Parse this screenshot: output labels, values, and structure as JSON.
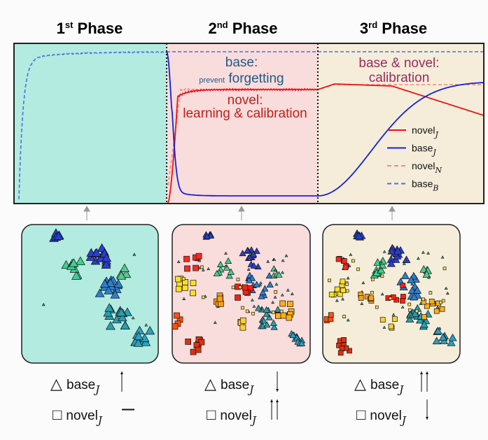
{
  "phases": [
    {
      "title": "1",
      "sup": "st",
      "rest": " Phase",
      "bg": "#b3ebe0"
    },
    {
      "title": "2",
      "sup": "nd",
      "rest": " Phase",
      "bg": "#f9dcdc"
    },
    {
      "title": "3",
      "sup": "rd",
      "rest": " Phase",
      "bg": "#f5edda"
    }
  ],
  "annotations": {
    "phase2_base_title": "base:",
    "phase2_base_small": "prevent",
    "phase2_base_body": "forgetting",
    "phase2_novel_title": "novel:",
    "phase2_novel_body": "learning & calibration",
    "phase3_title": "base & novel:",
    "phase3_body": "calibration"
  },
  "annotation_colors": {
    "base": "#1f5a85",
    "novel": "#c0201a",
    "both": "#9c2a5e"
  },
  "legend": [
    {
      "label": "novel",
      "sub": "J",
      "color": "#ee1111",
      "style": "solid"
    },
    {
      "label": "base",
      "sub": "J",
      "color": "#1122dd",
      "style": "solid"
    },
    {
      "label": "novel",
      "sub": "N",
      "color": "#f28a80",
      "style": "dashed"
    },
    {
      "label": "base",
      "sub": "B",
      "color": "#4a6fe0",
      "style": "dashed"
    }
  ],
  "summaries": [
    {
      "base": "base",
      "base_sub": "J",
      "base_trend": "↑",
      "novel": "novel",
      "novel_sub": "J",
      "novel_trend": "—"
    },
    {
      "base": "base",
      "base_sub": "J",
      "base_trend": "↓",
      "novel": "novel",
      "novel_sub": "J",
      "novel_trend": "↑↑"
    },
    {
      "base": "base",
      "base_sub": "J",
      "base_trend": "↑↑",
      "novel": "novel",
      "novel_sub": "J",
      "novel_trend": "↓"
    }
  ],
  "symbols": {
    "triangle": "△",
    "square": "□"
  }
}
